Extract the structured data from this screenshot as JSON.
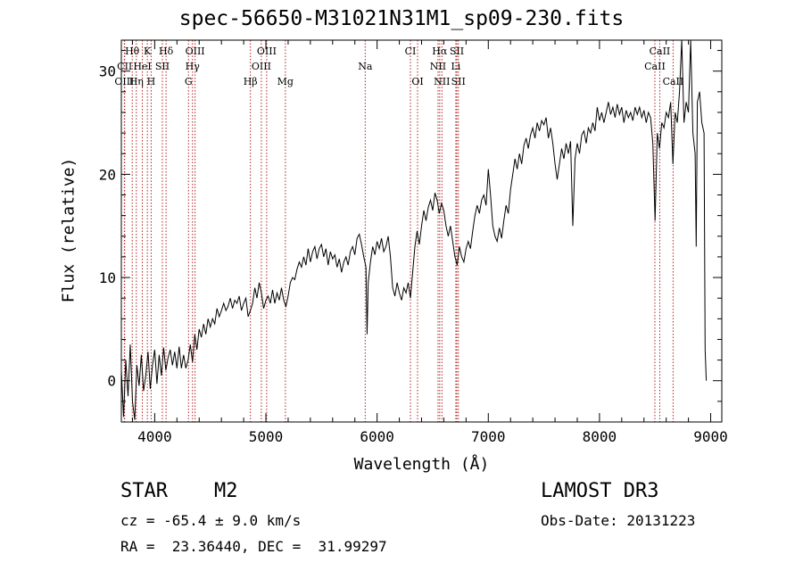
{
  "title": "spec-56650-M31021N31M1_sp09-230.fits",
  "footer": {
    "object_type": "STAR",
    "subclass": "M2",
    "survey": "LAMOST DR3",
    "cz": "cz = -65.4 ± 9.0 km/s",
    "obs_date": "Obs-Date: 20131223",
    "radec": "RA =  23.36440, DEC =  31.99297"
  },
  "colors": {
    "line": "#000000",
    "marker": "#b22222",
    "axis": "#000000"
  },
  "chart_data": {
    "type": "line",
    "title": "spec-56650-M31021N31M1_sp09-230.fits",
    "xlabel": "Wavelength (Å)",
    "ylabel": "Flux (relative)",
    "xlim": [
      3700,
      9100
    ],
    "ylim": [
      -4,
      33
    ],
    "x_ticks": [
      4000,
      5000,
      6000,
      7000,
      8000,
      9000
    ],
    "y_ticks": [
      0,
      10,
      20,
      30
    ],
    "series": [
      {
        "name": "spectrum",
        "points": [
          [
            3700,
            1.0
          ],
          [
            3720,
            -3.5
          ],
          [
            3740,
            2.0
          ],
          [
            3760,
            -1.5
          ],
          [
            3780,
            3.5
          ],
          [
            3800,
            -2.0
          ],
          [
            3820,
            -3.8
          ],
          [
            3840,
            1.5
          ],
          [
            3860,
            -0.5
          ],
          [
            3880,
            2.5
          ],
          [
            3900,
            -1.0
          ],
          [
            3920,
            0.5
          ],
          [
            3940,
            2.8
          ],
          [
            3960,
            -0.8
          ],
          [
            3980,
            1.5
          ],
          [
            4000,
            3.0
          ],
          [
            4020,
            -0.3
          ],
          [
            4040,
            2.5
          ],
          [
            4060,
            0.5
          ],
          [
            4080,
            3.2
          ],
          [
            4100,
            1.0
          ],
          [
            4120,
            2.2
          ],
          [
            4140,
            3.0
          ],
          [
            4160,
            1.5
          ],
          [
            4180,
            2.8
          ],
          [
            4200,
            1.2
          ],
          [
            4220,
            3.3
          ],
          [
            4240,
            1.2
          ],
          [
            4260,
            2.5
          ],
          [
            4280,
            1.2
          ],
          [
            4300,
            2.0
          ],
          [
            4320,
            3.5
          ],
          [
            4340,
            1.8
          ],
          [
            4360,
            4.5
          ],
          [
            4380,
            3.0
          ],
          [
            4400,
            5.0
          ],
          [
            4420,
            4.2
          ],
          [
            4440,
            5.5
          ],
          [
            4460,
            4.5
          ],
          [
            4480,
            6.0
          ],
          [
            4500,
            5.2
          ],
          [
            4520,
            6.0
          ],
          [
            4540,
            5.5
          ],
          [
            4560,
            7.0
          ],
          [
            4580,
            6.2
          ],
          [
            4600,
            6.8
          ],
          [
            4620,
            7.5
          ],
          [
            4640,
            6.8
          ],
          [
            4660,
            7.2
          ],
          [
            4680,
            8.0
          ],
          [
            4700,
            7.0
          ],
          [
            4720,
            7.8
          ],
          [
            4740,
            7.5
          ],
          [
            4760,
            8.2
          ],
          [
            4780,
            6.8
          ],
          [
            4800,
            7.5
          ],
          [
            4820,
            8.0
          ],
          [
            4840,
            6.2
          ],
          [
            4860,
            6.8
          ],
          [
            4880,
            7.5
          ],
          [
            4900,
            9.0
          ],
          [
            4920,
            8.0
          ],
          [
            4940,
            9.5
          ],
          [
            4960,
            8.5
          ],
          [
            4980,
            7.0
          ],
          [
            5000,
            7.8
          ],
          [
            5020,
            8.2
          ],
          [
            5040,
            7.5
          ],
          [
            5060,
            8.8
          ],
          [
            5080,
            7.5
          ],
          [
            5100,
            8.5
          ],
          [
            5120,
            7.8
          ],
          [
            5140,
            9.0
          ],
          [
            5160,
            7.8
          ],
          [
            5180,
            7.2
          ],
          [
            5200,
            8.2
          ],
          [
            5220,
            9.5
          ],
          [
            5240,
            10.0
          ],
          [
            5260,
            9.8
          ],
          [
            5280,
            10.8
          ],
          [
            5300,
            11.5
          ],
          [
            5320,
            11.0
          ],
          [
            5340,
            12.0
          ],
          [
            5360,
            11.2
          ],
          [
            5380,
            12.8
          ],
          [
            5400,
            11.5
          ],
          [
            5420,
            12.5
          ],
          [
            5440,
            13.0
          ],
          [
            5460,
            11.8
          ],
          [
            5480,
            12.8
          ],
          [
            5500,
            13.2
          ],
          [
            5520,
            12.0
          ],
          [
            5540,
            12.8
          ],
          [
            5560,
            11.2
          ],
          [
            5580,
            12.5
          ],
          [
            5600,
            11.8
          ],
          [
            5620,
            12.2
          ],
          [
            5640,
            11.0
          ],
          [
            5660,
            11.8
          ],
          [
            5680,
            10.5
          ],
          [
            5700,
            11.5
          ],
          [
            5720,
            12.0
          ],
          [
            5740,
            11.2
          ],
          [
            5760,
            12.5
          ],
          [
            5780,
            13.0
          ],
          [
            5800,
            12.2
          ],
          [
            5820,
            13.8
          ],
          [
            5840,
            14.2
          ],
          [
            5860,
            13.2
          ],
          [
            5880,
            12.0
          ],
          [
            5900,
            11.0
          ],
          [
            5910,
            4.5
          ],
          [
            5920,
            9.5
          ],
          [
            5940,
            11.5
          ],
          [
            5960,
            13.0
          ],
          [
            5980,
            12.2
          ],
          [
            6000,
            13.5
          ],
          [
            6020,
            12.8
          ],
          [
            6040,
            13.8
          ],
          [
            6060,
            12.5
          ],
          [
            6080,
            13.0
          ],
          [
            6100,
            14.0
          ],
          [
            6120,
            12.0
          ],
          [
            6140,
            9.0
          ],
          [
            6160,
            8.2
          ],
          [
            6180,
            9.5
          ],
          [
            6200,
            8.5
          ],
          [
            6220,
            7.8
          ],
          [
            6240,
            9.0
          ],
          [
            6260,
            8.5
          ],
          [
            6280,
            9.5
          ],
          [
            6300,
            8.0
          ],
          [
            6320,
            10.5
          ],
          [
            6340,
            13.0
          ],
          [
            6360,
            14.5
          ],
          [
            6380,
            13.2
          ],
          [
            6400,
            15.0
          ],
          [
            6420,
            16.5
          ],
          [
            6440,
            15.5
          ],
          [
            6460,
            16.8
          ],
          [
            6480,
            17.5
          ],
          [
            6500,
            16.5
          ],
          [
            6520,
            18.2
          ],
          [
            6540,
            17.5
          ],
          [
            6560,
            16.2
          ],
          [
            6580,
            17.2
          ],
          [
            6600,
            16.5
          ],
          [
            6620,
            15.0
          ],
          [
            6640,
            14.0
          ],
          [
            6660,
            15.0
          ],
          [
            6680,
            13.5
          ],
          [
            6700,
            12.0
          ],
          [
            6720,
            11.2
          ],
          [
            6740,
            13.0
          ],
          [
            6760,
            12.0
          ],
          [
            6780,
            11.5
          ],
          [
            6800,
            12.8
          ],
          [
            6820,
            13.5
          ],
          [
            6840,
            12.8
          ],
          [
            6860,
            14.5
          ],
          [
            6880,
            16.0
          ],
          [
            6900,
            17.0
          ],
          [
            6920,
            16.2
          ],
          [
            6940,
            17.5
          ],
          [
            6960,
            18.0
          ],
          [
            6980,
            17.0
          ],
          [
            7000,
            20.5
          ],
          [
            7020,
            18.0
          ],
          [
            7040,
            15.0
          ],
          [
            7060,
            14.0
          ],
          [
            7080,
            13.5
          ],
          [
            7100,
            14.8
          ],
          [
            7120,
            13.8
          ],
          [
            7140,
            15.5
          ],
          [
            7160,
            17.0
          ],
          [
            7180,
            16.2
          ],
          [
            7200,
            18.5
          ],
          [
            7220,
            20.0
          ],
          [
            7240,
            21.5
          ],
          [
            7260,
            20.5
          ],
          [
            7280,
            22.0
          ],
          [
            7300,
            21.0
          ],
          [
            7320,
            22.8
          ],
          [
            7340,
            23.5
          ],
          [
            7360,
            22.5
          ],
          [
            7380,
            23.8
          ],
          [
            7400,
            24.5
          ],
          [
            7420,
            23.5
          ],
          [
            7440,
            25.0
          ],
          [
            7460,
            24.2
          ],
          [
            7480,
            25.2
          ],
          [
            7500,
            24.8
          ],
          [
            7520,
            25.5
          ],
          [
            7540,
            23.5
          ],
          [
            7560,
            24.5
          ],
          [
            7580,
            23.0
          ],
          [
            7600,
            21.0
          ],
          [
            7620,
            19.5
          ],
          [
            7640,
            21.0
          ],
          [
            7660,
            22.5
          ],
          [
            7680,
            21.5
          ],
          [
            7700,
            23.0
          ],
          [
            7720,
            22.0
          ],
          [
            7740,
            23.2
          ],
          [
            7760,
            15.0
          ],
          [
            7780,
            21.5
          ],
          [
            7800,
            23.0
          ],
          [
            7820,
            22.0
          ],
          [
            7840,
            23.8
          ],
          [
            7860,
            24.2
          ],
          [
            7880,
            23.0
          ],
          [
            7900,
            24.5
          ],
          [
            7920,
            24.0
          ],
          [
            7940,
            25.0
          ],
          [
            7960,
            24.2
          ],
          [
            7980,
            26.5
          ],
          [
            8000,
            25.2
          ],
          [
            8020,
            26.0
          ],
          [
            8040,
            25.0
          ],
          [
            8060,
            26.0
          ],
          [
            8080,
            27.0
          ],
          [
            8100,
            25.8
          ],
          [
            8120,
            26.5
          ],
          [
            8140,
            25.5
          ],
          [
            8160,
            26.8
          ],
          [
            8180,
            25.8
          ],
          [
            8200,
            26.5
          ],
          [
            8220,
            25.0
          ],
          [
            8240,
            26.2
          ],
          [
            8260,
            25.5
          ],
          [
            8280,
            26.0
          ],
          [
            8300,
            25.2
          ],
          [
            8320,
            26.5
          ],
          [
            8340,
            25.8
          ],
          [
            8360,
            26.5
          ],
          [
            8380,
            25.5
          ],
          [
            8400,
            26.2
          ],
          [
            8420,
            25.0
          ],
          [
            8440,
            26.0
          ],
          [
            8460,
            25.5
          ],
          [
            8480,
            23.0
          ],
          [
            8500,
            15.5
          ],
          [
            8520,
            24.0
          ],
          [
            8540,
            22.5
          ],
          [
            8560,
            25.0
          ],
          [
            8580,
            24.5
          ],
          [
            8600,
            26.0
          ],
          [
            8620,
            25.5
          ],
          [
            8640,
            27.0
          ],
          [
            8660,
            21.0
          ],
          [
            8680,
            26.0
          ],
          [
            8700,
            25.0
          ],
          [
            8720,
            28.0
          ],
          [
            8740,
            33.0
          ],
          [
            8760,
            25.0
          ],
          [
            8780,
            27.0
          ],
          [
            8800,
            26.0
          ],
          [
            8820,
            33.0
          ],
          [
            8840,
            24.0
          ],
          [
            8860,
            22.0
          ],
          [
            8870,
            13.0
          ],
          [
            8880,
            27.0
          ],
          [
            8900,
            28.0
          ],
          [
            8920,
            25.0
          ],
          [
            8940,
            24.0
          ],
          [
            8950,
            3.0
          ],
          [
            8960,
            0.0
          ]
        ]
      }
    ],
    "markers": [
      {
        "label": "Hθ",
        "x": 3798,
        "row": 0
      },
      {
        "label": "K",
        "x": 3934,
        "row": 0
      },
      {
        "label": "Hδ",
        "x": 4102,
        "row": 0
      },
      {
        "label": "OIII",
        "x": 4363,
        "row": 0
      },
      {
        "label": "OIII",
        "x": 5007,
        "row": 0
      },
      {
        "label": "CI",
        "x": 6300,
        "row": 0
      },
      {
        "label": "Hα",
        "x": 6563,
        "row": 0
      },
      {
        "label": "SII",
        "x": 6717,
        "row": 0
      },
      {
        "label": "CaII",
        "x": 8542,
        "row": 0
      },
      {
        "label": "CII",
        "x": 3730,
        "row": 1
      },
      {
        "label": "HeI",
        "x": 3889,
        "row": 1
      },
      {
        "label": "SII",
        "x": 4069,
        "row": 1
      },
      {
        "label": "Hγ",
        "x": 4340,
        "row": 1
      },
      {
        "label": "OIII",
        "x": 4959,
        "row": 1
      },
      {
        "label": "Na",
        "x": 5893,
        "row": 1
      },
      {
        "label": "NII",
        "x": 6548,
        "row": 1
      },
      {
        "label": "Li",
        "x": 6708,
        "row": 1
      },
      {
        "label": "CaII",
        "x": 8498,
        "row": 1
      },
      {
        "label": "OIII",
        "x": 3727,
        "row": 2
      },
      {
        "label": "Hη",
        "x": 3835,
        "row": 2
      },
      {
        "label": "H",
        "x": 3968,
        "row": 2
      },
      {
        "label": "G",
        "x": 4304,
        "row": 2
      },
      {
        "label": "Hβ",
        "x": 4861,
        "row": 2
      },
      {
        "label": "Mg",
        "x": 5175,
        "row": 2
      },
      {
        "label": "OI",
        "x": 6364,
        "row": 2
      },
      {
        "label": "NII",
        "x": 6583,
        "row": 2
      },
      {
        "label": "SII",
        "x": 6731,
        "row": 2
      },
      {
        "label": "CaII",
        "x": 8662,
        "row": 2
      }
    ]
  }
}
